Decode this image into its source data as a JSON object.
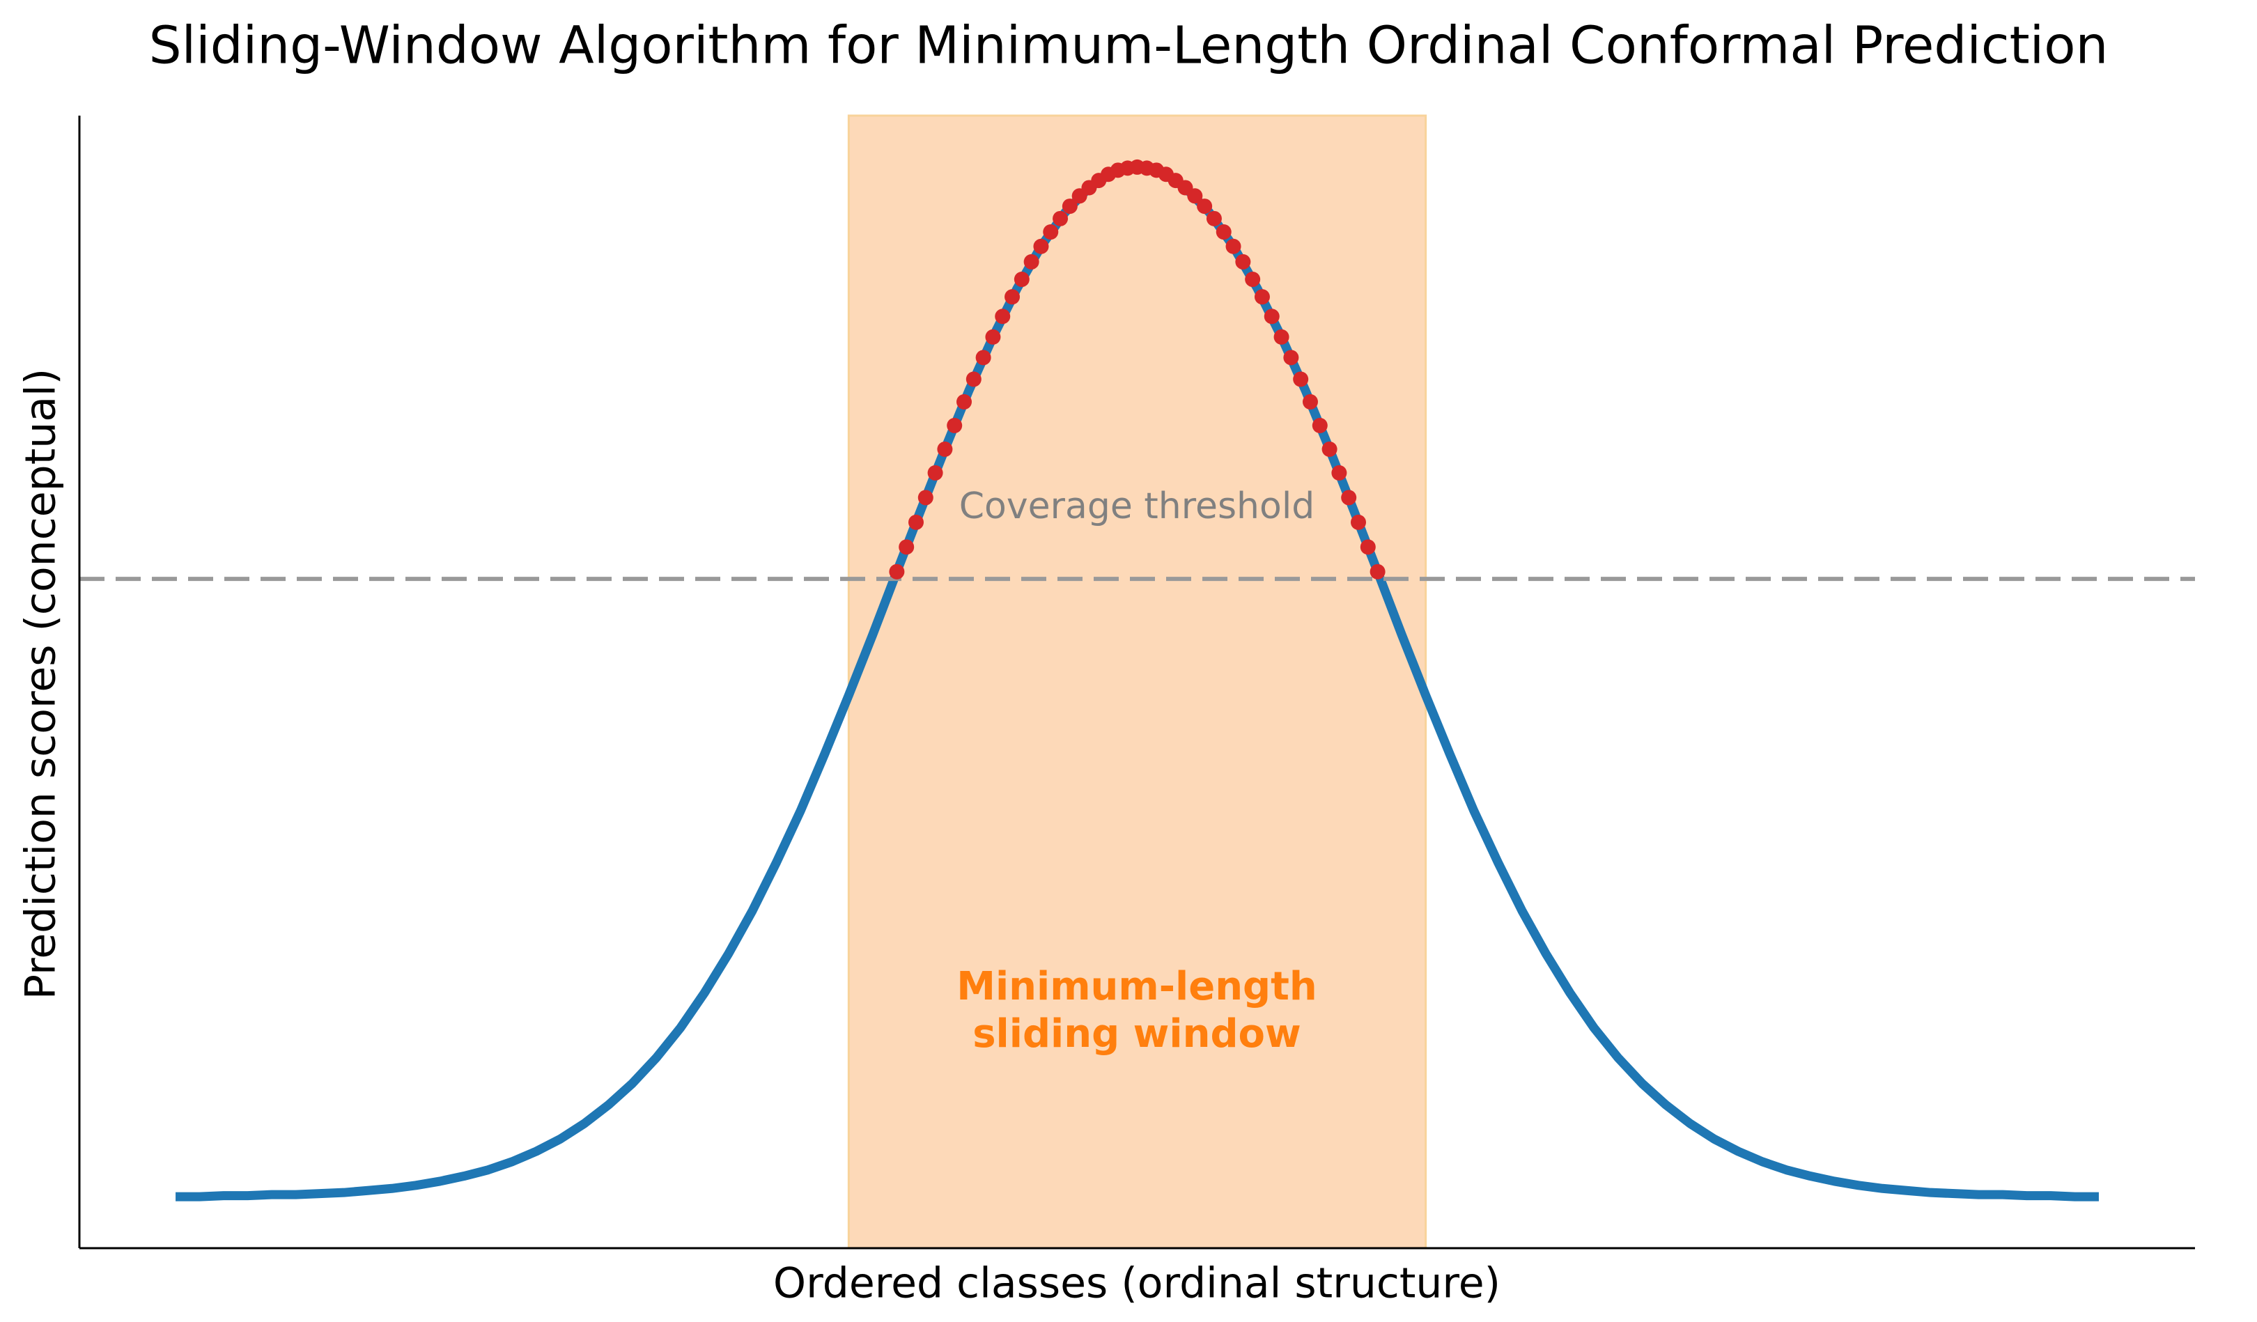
{
  "chart_data": {
    "type": "line",
    "title": "Sliding-Window Algorithm for Minimum-Length Ordinal Conformal Prediction",
    "x_label": "Ordered classes (ordinal structure)",
    "y_label": "Prediction scores (conceptual)",
    "xlim": [
      -4.4,
      4.4
    ],
    "ylim": [
      -0.05,
      1.05
    ],
    "threshold": 0.6,
    "threshold_label": "Coverage threshold",
    "threshold_color": "#999999",
    "window": [
      -1.2,
      1.2
    ],
    "window_color": "#fdd9b8",
    "window_label": [
      "Minimum-length",
      "sliding window"
    ],
    "window_label_color": "#ff7f0e",
    "series": [
      {
        "style": "line",
        "color": "#1f77b4",
        "x": [
          -4,
          -3.9,
          -3.8,
          -3.7,
          -3.6,
          -3.5,
          -3.4,
          -3.3,
          -3.2,
          -3.1,
          -3,
          -2.9,
          -2.8,
          -2.7,
          -2.6,
          -2.5,
          -2.4,
          -2.3,
          -2.2,
          -2.1,
          -2,
          -1.9,
          -1.8,
          -1.7,
          -1.6,
          -1.5,
          -1.4,
          -1.3,
          -1.2,
          -1.1,
          -1,
          -0.9,
          -0.8,
          -0.7,
          -0.6,
          -0.5,
          -0.4,
          -0.3,
          -0.2,
          -0.1,
          0,
          0.1,
          0.2,
          0.3,
          0.4,
          0.5,
          0.6,
          0.7,
          0.8,
          0.9,
          1,
          1.1,
          1.2,
          1.3,
          1.4,
          1.5,
          1.6,
          1.7,
          1.8,
          1.9,
          2,
          2.1,
          2.2,
          2.3,
          2.4,
          2.5,
          2.6,
          2.7,
          2.8,
          2.9,
          3,
          3.1,
          3.2,
          3.3,
          3.4,
          3.5,
          3.6,
          3.7,
          3.8,
          3.9,
          4
        ],
        "values": [
          0,
          0,
          0.001,
          0.001,
          0.002,
          0.002,
          0.003,
          0.004,
          0.006,
          0.008,
          0.011,
          0.015,
          0.02,
          0.026,
          0.034,
          0.044,
          0.056,
          0.071,
          0.089,
          0.11,
          0.135,
          0.164,
          0.198,
          0.236,
          0.278,
          0.325,
          0.375,
          0.43,
          0.487,
          0.546,
          0.607,
          0.667,
          0.726,
          0.783,
          0.835,
          0.882,
          0.923,
          0.956,
          0.98,
          0.995,
          1,
          0.995,
          0.98,
          0.956,
          0.923,
          0.882,
          0.835,
          0.783,
          0.726,
          0.667,
          0.607,
          0.546,
          0.487,
          0.43,
          0.375,
          0.325,
          0.278,
          0.236,
          0.198,
          0.164,
          0.135,
          0.11,
          0.089,
          0.071,
          0.056,
          0.044,
          0.034,
          0.026,
          0.02,
          0.015,
          0.011,
          0.008,
          0.006,
          0.004,
          0.003,
          0.002,
          0.002,
          0.001,
          0.001,
          0,
          0
        ]
      },
      {
        "style": "markers",
        "color": "#d62728",
        "x": [
          -1,
          -0.96,
          -0.92,
          -0.88,
          -0.84,
          -0.8,
          -0.76,
          -0.72,
          -0.68,
          -0.64,
          -0.6,
          -0.56,
          -0.52,
          -0.48,
          -0.44,
          -0.4,
          -0.36,
          -0.32,
          -0.28,
          -0.24,
          -0.2,
          -0.16,
          -0.12,
          -0.08,
          -0.04,
          0,
          0.04,
          0.08,
          0.12,
          0.16,
          0.2,
          0.24,
          0.28,
          0.32,
          0.36,
          0.4,
          0.44,
          0.48,
          0.52,
          0.56,
          0.6,
          0.64,
          0.68,
          0.72,
          0.76,
          0.8,
          0.84,
          0.88,
          0.92,
          0.96,
          1
        ],
        "values": [
          0.607,
          0.631,
          0.655,
          0.679,
          0.703,
          0.726,
          0.749,
          0.772,
          0.794,
          0.815,
          0.835,
          0.855,
          0.874,
          0.891,
          0.908,
          0.923,
          0.937,
          0.95,
          0.962,
          0.972,
          0.98,
          0.987,
          0.993,
          0.997,
          0.999,
          1,
          0.999,
          0.997,
          0.993,
          0.987,
          0.98,
          0.972,
          0.962,
          0.95,
          0.937,
          0.923,
          0.908,
          0.891,
          0.874,
          0.855,
          0.835,
          0.815,
          0.794,
          0.772,
          0.749,
          0.726,
          0.703,
          0.679,
          0.655,
          0.631,
          0.607
        ]
      }
    ]
  }
}
